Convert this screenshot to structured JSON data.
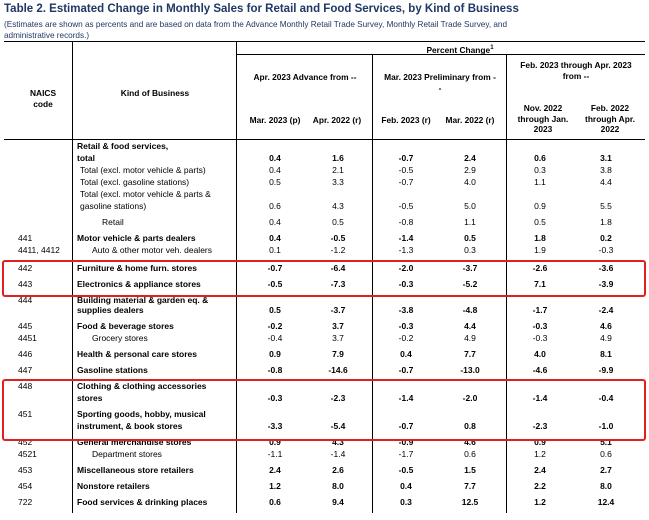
{
  "title": "Table 2.  Estimated Change in Monthly Sales for Retail and Food Services, by Kind of Business",
  "note": "(Estimates are shown as percents and are based on data from the Advance Monthly Retail Trade Survey, Monthly Retail Trade Survey, and administrative records.)",
  "headers": {
    "naics": "NAICS code",
    "kind": "Kind of Business",
    "percent_change": "Percent Change",
    "footnote_mark": "1",
    "group1": "Apr. 2023 Advance from --",
    "group2": "Mar. 2023 Preliminary from --",
    "group3": "Feb. 2023 through Apr. 2023 from --",
    "cols": [
      "Mar. 2023 (p)",
      "Apr. 2022 (r)",
      "Feb. 2023 (r)",
      "Mar. 2022 (r)",
      "Nov. 2022 through Jan. 2023",
      "Feb. 2022 through Apr. 2022"
    ]
  },
  "rows": [
    {
      "code": "",
      "kind": "Retail & food services,",
      "vals": [
        "",
        "",
        "",
        "",
        "",
        ""
      ]
    },
    {
      "code": "",
      "kind": "total",
      "vals": [
        "0.4",
        "1.6",
        "-0.7",
        "2.4",
        "0.6",
        "3.1"
      ]
    },
    {
      "code": "",
      "kind": "Total (excl. motor vehicle & parts)",
      "vals": [
        "0.4",
        "2.1",
        "-0.5",
        "2.9",
        "0.3",
        "3.8"
      ]
    },
    {
      "code": "",
      "kind": "Total (excl. gasoline stations)",
      "vals": [
        "0.5",
        "3.3",
        "-0.7",
        "4.0",
        "1.1",
        "4.4"
      ]
    },
    {
      "code": "",
      "kind": "Total (excl. motor vehicle & parts &",
      "vals": [
        "",
        "",
        "",
        "",
        "",
        ""
      ]
    },
    {
      "code": "",
      "kind": "gasoline stations)",
      "vals": [
        "0.6",
        "4.3",
        "-0.5",
        "5.0",
        "0.9",
        "5.5"
      ]
    },
    {
      "code": "",
      "kind": "Retail",
      "vals": [
        "0.4",
        "0.5",
        "-0.8",
        "1.1",
        "0.5",
        "1.8"
      ]
    },
    {
      "code": "441",
      "kind": "Motor vehicle & parts dealers",
      "vals": [
        "0.4",
        "-0.5",
        "-1.4",
        "0.5",
        "1.8",
        "0.2"
      ]
    },
    {
      "code": "4411, 4412",
      "kind": "Auto & other motor veh. dealers",
      "vals": [
        "0.1",
        "-1.2",
        "-1.3",
        "0.3",
        "1.9",
        "-0.3"
      ]
    },
    {
      "code": "442",
      "kind": "Furniture & home furn. stores",
      "vals": [
        "-0.7",
        "-6.4",
        "-2.0",
        "-3.7",
        "-2.6",
        "-3.6"
      ]
    },
    {
      "code": "443",
      "kind": "Electronics & appliance stores",
      "vals": [
        "-0.5",
        "-7.3",
        "-0.3",
        "-5.2",
        "7.1",
        "-3.9"
      ]
    },
    {
      "code": "444",
      "kind": "Building material & garden eq. &",
      "vals": [
        "",
        "",
        "",
        "",
        "",
        ""
      ]
    },
    {
      "code": "",
      "kind": "supplies dealers",
      "vals": [
        "0.5",
        "-3.7",
        "-3.8",
        "-4.8",
        "-1.7",
        "-2.4"
      ]
    },
    {
      "code": "445",
      "kind": "Food & beverage stores",
      "vals": [
        "-0.2",
        "3.7",
        "-0.3",
        "4.4",
        "-0.3",
        "4.6"
      ]
    },
    {
      "code": "4451",
      "kind": "Grocery stores",
      "vals": [
        "-0.4",
        "3.7",
        "-0.2",
        "4.9",
        "-0.3",
        "4.9"
      ]
    },
    {
      "code": "446",
      "kind": "Health & personal care stores",
      "vals": [
        "0.9",
        "7.9",
        "0.4",
        "7.7",
        "4.0",
        "8.1"
      ]
    },
    {
      "code": "447",
      "kind": "Gasoline stations",
      "vals": [
        "-0.8",
        "-14.6",
        "-0.7",
        "-13.0",
        "-4.6",
        "-9.9"
      ]
    },
    {
      "code": "448",
      "kind": "Clothing & clothing accessories",
      "vals": [
        "",
        "",
        "",
        "",
        "",
        ""
      ]
    },
    {
      "code": "",
      "kind": "stores",
      "vals": [
        "-0.3",
        "-2.3",
        "-1.4",
        "-2.0",
        "-1.4",
        "-0.4"
      ]
    },
    {
      "code": "451",
      "kind": "Sporting goods, hobby, musical",
      "vals": [
        "",
        "",
        "",
        "",
        "",
        ""
      ]
    },
    {
      "code": "",
      "kind": "instrument, & book stores",
      "vals": [
        "-3.3",
        "-5.4",
        "-0.7",
        "0.8",
        "-2.3",
        "-1.0"
      ]
    },
    {
      "code": "452",
      "kind": "General merchandise stores",
      "vals": [
        "0.9",
        "4.3",
        "-0.9",
        "4.6",
        "0.9",
        "5.1"
      ]
    },
    {
      "code": "4521",
      "kind": "Department stores",
      "vals": [
        "-1.1",
        "-1.4",
        "-1.7",
        "0.6",
        "1.2",
        "0.6"
      ]
    },
    {
      "code": "453",
      "kind": "Miscellaneous store retailers",
      "vals": [
        "2.4",
        "2.6",
        "-0.5",
        "1.5",
        "2.4",
        "2.7"
      ]
    },
    {
      "code": "454",
      "kind": "Nonstore retailers",
      "vals": [
        "1.2",
        "8.0",
        "0.4",
        "7.7",
        "2.2",
        "8.0"
      ]
    },
    {
      "code": "722",
      "kind": "Food services & drinking places",
      "vals": [
        "0.6",
        "9.4",
        "0.3",
        "12.5",
        "1.2",
        "12.4"
      ]
    }
  ],
  "colors": {
    "title": "#1f3864",
    "highlight": "#e02020"
  }
}
